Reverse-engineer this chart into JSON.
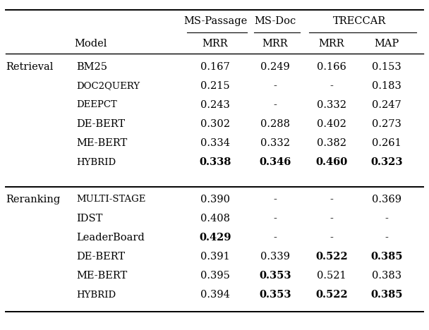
{
  "rows": [
    {
      "group": "Retrieval",
      "model": "BM25",
      "model_style": "normal",
      "ms_passage_mrr": "0.167",
      "ms_doc_mrr": "0.249",
      "treccar_mrr": "0.166",
      "treccar_map": "0.153",
      "bold": []
    },
    {
      "group": "",
      "model": "Doc2Query",
      "model_style": "sc",
      "ms_passage_mrr": "0.215",
      "ms_doc_mrr": "-",
      "treccar_mrr": "-",
      "treccar_map": "0.183",
      "bold": []
    },
    {
      "group": "",
      "model": "DeepCT",
      "model_style": "sc",
      "ms_passage_mrr": "0.243",
      "ms_doc_mrr": "-",
      "treccar_mrr": "0.332",
      "treccar_map": "0.247",
      "bold": []
    },
    {
      "group": "",
      "model": "DE-BERT",
      "model_style": "normal",
      "ms_passage_mrr": "0.302",
      "ms_doc_mrr": "0.288",
      "treccar_mrr": "0.402",
      "treccar_map": "0.273",
      "bold": []
    },
    {
      "group": "",
      "model": "ME-BERT",
      "model_style": "normal",
      "ms_passage_mrr": "0.334",
      "ms_doc_mrr": "0.332",
      "treccar_mrr": "0.382",
      "treccar_map": "0.261",
      "bold": []
    },
    {
      "group": "",
      "model": "Hybrid",
      "model_style": "sc",
      "ms_passage_mrr": "0.338",
      "ms_doc_mrr": "0.346",
      "treccar_mrr": "0.460",
      "treccar_map": "0.323",
      "bold": [
        "ms_passage_mrr",
        "ms_doc_mrr",
        "treccar_mrr",
        "treccar_map"
      ]
    },
    {
      "group": "Reranking",
      "model": "Multi-Stage",
      "model_style": "sc",
      "ms_passage_mrr": "0.390",
      "ms_doc_mrr": "-",
      "treccar_mrr": "-",
      "treccar_map": "0.369",
      "bold": []
    },
    {
      "group": "",
      "model": "IDST",
      "model_style": "normal",
      "ms_passage_mrr": "0.408",
      "ms_doc_mrr": "-",
      "treccar_mrr": "-",
      "treccar_map": "-",
      "bold": []
    },
    {
      "group": "",
      "model": "LeaderBoard",
      "model_style": "normal",
      "ms_passage_mrr": "0.429",
      "ms_doc_mrr": "-",
      "treccar_mrr": "-",
      "treccar_map": "-",
      "bold": [
        "ms_passage_mrr"
      ]
    },
    {
      "group": "",
      "model": "DE-BERT",
      "model_style": "normal",
      "ms_passage_mrr": "0.391",
      "ms_doc_mrr": "0.339",
      "treccar_mrr": "0.522",
      "treccar_map": "0.385",
      "bold": [
        "treccar_mrr",
        "treccar_map"
      ]
    },
    {
      "group": "",
      "model": "ME-BERT",
      "model_style": "normal",
      "ms_passage_mrr": "0.395",
      "ms_doc_mrr": "0.353",
      "treccar_mrr": "0.521",
      "treccar_map": "0.383",
      "bold": [
        "ms_doc_mrr"
      ]
    },
    {
      "group": "",
      "model": "Hybrid",
      "model_style": "sc",
      "ms_passage_mrr": "0.394",
      "ms_doc_mrr": "0.353",
      "treccar_mrr": "0.522",
      "treccar_map": "0.385",
      "bold": [
        "ms_doc_mrr",
        "treccar_mrr",
        "treccar_map"
      ]
    }
  ],
  "background_color": "#ffffff"
}
